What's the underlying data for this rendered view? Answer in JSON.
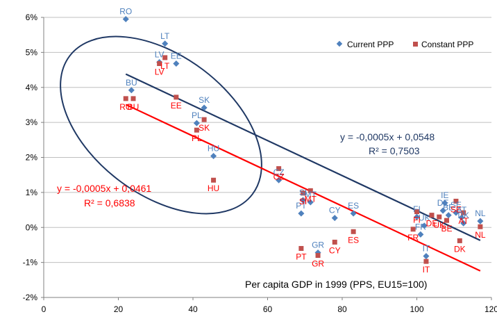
{
  "chart_data": {
    "type": "scatter",
    "xlabel": "Per capita GDP in 1999 (PPS, EU15=100)",
    "ylabel": "",
    "xlim": [
      0,
      120
    ],
    "ylim": [
      -2,
      6
    ],
    "x_ticks": [
      "0",
      "20",
      "40",
      "60",
      "80",
      "100",
      "120"
    ],
    "y_ticks": [
      "-2%",
      "-1%",
      "0%",
      "1%",
      "2%",
      "3%",
      "4%",
      "5%",
      "6%"
    ],
    "grid": "horizontal",
    "legend_position": "top-right",
    "colors": {
      "current": "#4f81bd",
      "constant": "#c0504d",
      "trend_current": "#1f3864",
      "trend_constant": "#ff0000",
      "ellipse": "#1f3864"
    },
    "series": [
      {
        "name": "Current PPP",
        "marker": "diamond",
        "points": [
          {
            "label": "RO",
            "x": 22,
            "y": 5.95
          },
          {
            "label": "LT",
            "x": 32.5,
            "y": 5.25
          },
          {
            "label": "LV",
            "x": 31,
            "y": 4.72
          },
          {
            "label": "EE",
            "x": 35.5,
            "y": 4.68
          },
          {
            "label": "BU",
            "x": 23.5,
            "y": 3.92
          },
          {
            "label": "SK",
            "x": 43,
            "y": 3.42
          },
          {
            "label": "PL",
            "x": 41,
            "y": 2.98
          },
          {
            "label": "HU",
            "x": 45.5,
            "y": 2.04
          },
          {
            "label": "CZ",
            "x": 63,
            "y": 1.35
          },
          {
            "label": "SI",
            "x": 69.5,
            "y": 0.78
          },
          {
            "label": "MT",
            "x": 71.5,
            "y": 0.72
          },
          {
            "label": "PT",
            "x": 69,
            "y": 0.4
          },
          {
            "label": "CY",
            "x": 78,
            "y": 0.27
          },
          {
            "label": "ES",
            "x": 83,
            "y": 0.4
          },
          {
            "label": "GR",
            "x": 73.5,
            "y": -0.72
          },
          {
            "label": "FI",
            "x": 100,
            "y": 0.3
          },
          {
            "label": "IE",
            "x": 107.5,
            "y": 0.7
          },
          {
            "label": "DE",
            "x": 107,
            "y": 0.48
          },
          {
            "label": "BE",
            "x": 108.5,
            "y": 0.35
          },
          {
            "label": "SE",
            "x": 110.5,
            "y": 0.42
          },
          {
            "label": "AT",
            "x": 112,
            "y": 0.28
          },
          {
            "label": "DK",
            "x": 112.5,
            "y": 0.12
          },
          {
            "label": "NL",
            "x": 117,
            "y": 0.18
          },
          {
            "label": "UK",
            "x": 102,
            "y": 0.05
          },
          {
            "label": "FR",
            "x": 101,
            "y": -0.2
          },
          {
            "label": "IT",
            "x": 102.5,
            "y": -0.82
          }
        ]
      },
      {
        "name": "Constant PPP",
        "marker": "square",
        "points": [
          {
            "label": "LT",
            "x": 32.5,
            "y": 4.85
          },
          {
            "label": "LV",
            "x": 31,
            "y": 4.68
          },
          {
            "label": "EE",
            "x": 35.5,
            "y": 3.72
          },
          {
            "label": "RO",
            "x": 22,
            "y": 3.68
          },
          {
            "label": "BU",
            "x": 24,
            "y": 3.68
          },
          {
            "label": "PL",
            "x": 41,
            "y": 2.78
          },
          {
            "label": "SK",
            "x": 43,
            "y": 3.08
          },
          {
            "label": "HU",
            "x": 45.5,
            "y": 1.35
          },
          {
            "label": "CZ",
            "x": 63,
            "y": 1.68
          },
          {
            "label": "SI",
            "x": 69.5,
            "y": 0.98
          },
          {
            "label": "MT",
            "x": 71.5,
            "y": 1.05
          },
          {
            "label": "ES",
            "x": 83,
            "y": -0.12
          },
          {
            "label": "CY",
            "x": 78,
            "y": -0.42
          },
          {
            "label": "PT",
            "x": 69,
            "y": -0.6
          },
          {
            "label": "GR",
            "x": 73.5,
            "y": -0.8
          },
          {
            "label": "FI",
            "x": 100,
            "y": 0.45
          },
          {
            "label": "DE",
            "x": 104,
            "y": 0.35
          },
          {
            "label": "UK",
            "x": 106,
            "y": 0.3
          },
          {
            "label": "SE",
            "x": 110.5,
            "y": 0.75
          },
          {
            "label": "AT",
            "x": 112.5,
            "y": 0.42
          },
          {
            "label": "BE",
            "x": 108,
            "y": 0.2
          },
          {
            "label": "FR",
            "x": 99,
            "y": -0.05
          },
          {
            "label": "NL",
            "x": 117,
            "y": 0.02
          },
          {
            "label": "DK",
            "x": 111.5,
            "y": -0.38
          },
          {
            "label": "IT",
            "x": 102.5,
            "y": -0.97
          }
        ]
      }
    ],
    "trendlines": [
      {
        "series": "Current PPP",
        "slope": -0.0005,
        "intercept": 0.0548,
        "equation": "y = -0,0005x + 0,0548",
        "r2": "R² = 0,7503"
      },
      {
        "series": "Constant PPP",
        "slope": -0.0005,
        "intercept": 0.0461,
        "equation": "y = -0,0005x + 0,0461",
        "r2": "R² = 0,6838"
      }
    ]
  }
}
